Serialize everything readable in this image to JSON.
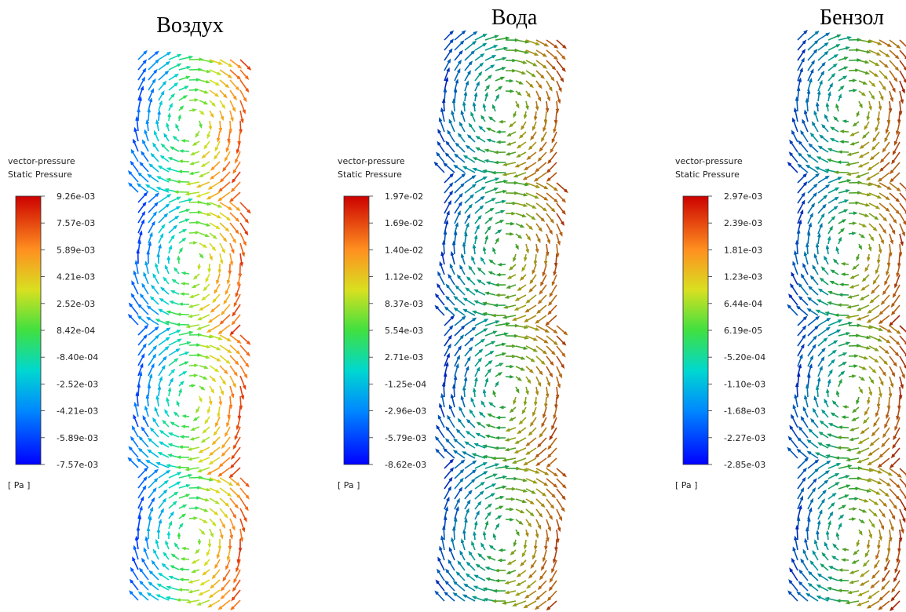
{
  "panels": [
    {
      "title": "Воздух",
      "legend": {
        "title": [
          "vector-pressure",
          "Static Pressure"
        ],
        "ticks": [
          "9.26e-03",
          "7.57e-03",
          "5.89e-03",
          "4.21e-03",
          "2.52e-03",
          "8.42e-04",
          "-8.40e-04",
          "-2.52e-03",
          "-4.21e-03",
          "-5.89e-03",
          "-7.57e-03"
        ],
        "unit": "[ Pa ]"
      }
    },
    {
      "title": "Вода",
      "legend": {
        "title": [
          "vector-pressure",
          "Static Pressure"
        ],
        "ticks": [
          "1.97e-02",
          "1.69e-02",
          "1.40e-02",
          "1.12e-02",
          "8.37e-03",
          "5.54e-03",
          "2.71e-03",
          "-1.25e-04",
          "-2.96e-03",
          "-5.79e-03",
          "-8.62e-03"
        ],
        "unit": "[ Pa ]"
      }
    },
    {
      "title": "Бензол",
      "legend": {
        "title": [
          "vector-pressure",
          "Static Pressure"
        ],
        "ticks": [
          "2.97e-03",
          "2.39e-03",
          "1.81e-03",
          "1.23e-03",
          "6.44e-04",
          "6.19e-05",
          "-5.20e-04",
          "-1.10e-03",
          "-1.68e-03",
          "-2.27e-03",
          "-2.85e-03"
        ],
        "unit": "[ Pa ]"
      }
    }
  ]
}
